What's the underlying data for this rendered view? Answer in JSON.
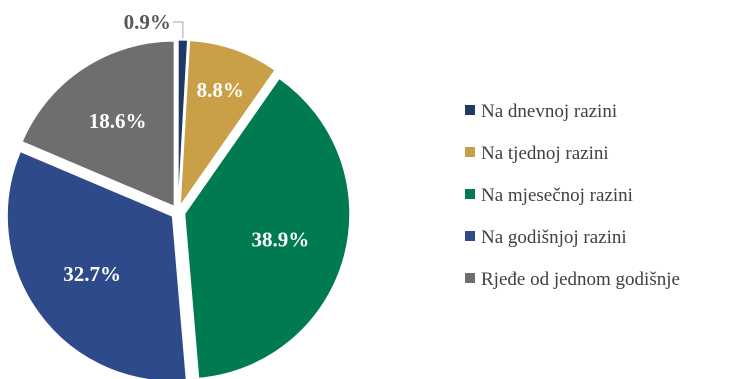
{
  "chart_data": {
    "type": "pie",
    "title": "",
    "categories": [
      "Na dnevnoj razini",
      "Na tjednoj razini",
      "Na mjesečnoj razini",
      "Na godišnjoj razini",
      "Rjeđe od jednom godišnje"
    ],
    "values": [
      0.9,
      8.8,
      38.9,
      32.7,
      18.6
    ],
    "data_labels": [
      "0.9%",
      "8.8%",
      "38.9%",
      "32.7%",
      "18.6%"
    ],
    "colors": [
      "#1f3864",
      "#c9a048",
      "#007a50",
      "#2e4a8a",
      "#6e6e6e"
    ],
    "unit": "%",
    "legend_position": "right",
    "start_angle": "top, clockwise"
  }
}
